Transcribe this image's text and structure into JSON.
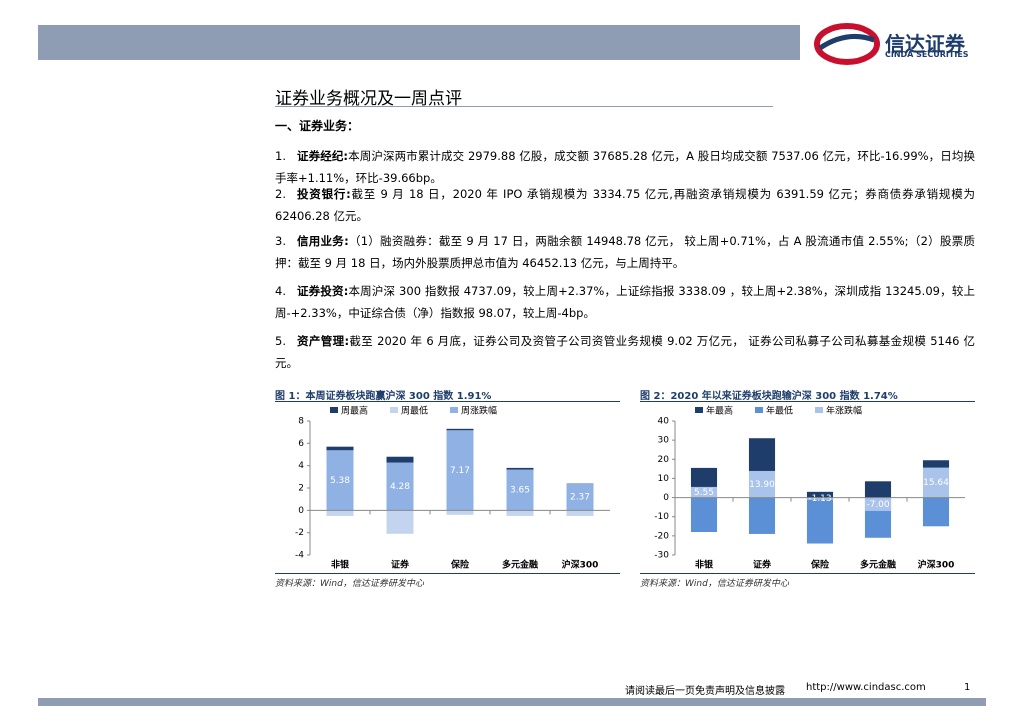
{
  "header": {
    "logo_cn": "信达证券",
    "logo_en": "CINDA SECURITIES"
  },
  "title": "证券业务概况及一周点评",
  "section": "一、证券业务：",
  "items": [
    {
      "num": "1.",
      "label": "证券经纪:",
      "text": "本周沪深两市累计成交 2979.88 亿股，成交额 37685.28 亿元，A 股日均成交额 7537.06 亿元，环比-16.99%，日均换手率+1.11%，环比-39.66bp。"
    },
    {
      "num": "2.",
      "label": "投资银行:",
      "text": "截至 9 月 18 日，2020 年 IPO 承销规模为 3334.75 亿元,再融资承销规模为 6391.59 亿元；券商债券承销规模为 62406.28 亿元。"
    },
    {
      "num": "3.",
      "label": "信用业务:",
      "text": "（1）融资融券：截至 9 月 17 日，两融余额 14948.78 亿元， 较上周+0.71%，占 A 股流通市值 2.55%;（2）股票质押：截至 9 月 18 日，场内外股票质押总市值为 46452.13 亿元，与上周持平。"
    },
    {
      "num": "4.",
      "label": "证券投资:",
      "text": "本周沪深 300 指数报 4737.09，较上周+2.37%，上证综指报 3338.09 ，较上周+2.38%，深圳成指 13245.09，较上周-+2.33%，中证综合债（净）指数报 98.07，较上周-4bp。"
    },
    {
      "num": "5.",
      "label": "资产管理:",
      "text": "截至 2020 年 6 月底，证券公司及资管子公司资管业务规模 9.02 万亿元， 证券公司私募子公司私募基金规模 5146 亿元。"
    }
  ],
  "chart_data": [
    {
      "type": "bar",
      "title": "图 1：本周证券板块跑赢沪深 300 指数 1.91%",
      "source": "资料来源：Wind，信达证券研发中心",
      "categories": [
        "非银",
        "证券",
        "保险",
        "多元金融",
        "沪深300"
      ],
      "series": [
        {
          "name": "周最高",
          "color": "#1f3d6b",
          "values": [
            5.7,
            4.8,
            7.3,
            3.8,
            2.4
          ]
        },
        {
          "name": "周最低",
          "color": "#c3d4ee",
          "values": [
            -0.5,
            -2.1,
            -0.4,
            -0.5,
            -0.5
          ]
        },
        {
          "name": "周涨跌幅",
          "color": "#8fb1e3",
          "values": [
            5.38,
            4.28,
            7.17,
            3.65,
            2.37
          ]
        }
      ],
      "ylim": [
        -4,
        8
      ],
      "yticks": [
        -4,
        -2,
        0,
        2,
        4,
        6,
        8
      ]
    },
    {
      "type": "bar",
      "title": "图 2：2020 年以来证券板块跑输沪深 300 指数 1.74%",
      "source": "资料来源：Wind，信达证券研发中心",
      "categories": [
        "非银",
        "证券",
        "保险",
        "多元金融",
        "沪深300"
      ],
      "series": [
        {
          "name": "年最高",
          "color": "#1f3d6b",
          "values": [
            15.5,
            31,
            3,
            8.5,
            19.5
          ]
        },
        {
          "name": "年最低",
          "color": "#5b8fd6",
          "values": [
            -18,
            -19,
            -24,
            -21,
            -15
          ]
        },
        {
          "name": "年涨跌幅",
          "color": "#a9c3ea",
          "values": [
            5.55,
            13.9,
            -1.13,
            -7,
            15.64
          ],
          "value_labels": [
            "5.55",
            "13.90",
            "-1.13",
            "-7.00",
            "15.64"
          ]
        }
      ],
      "ylim": [
        -30,
        40
      ],
      "yticks": [
        -30,
        -20,
        -10,
        0,
        10,
        20,
        30,
        40
      ]
    }
  ],
  "footer": {
    "note": "请阅读最后一页免责声明及信息披露",
    "url": "http://www.cindasc.com",
    "page": "1"
  }
}
